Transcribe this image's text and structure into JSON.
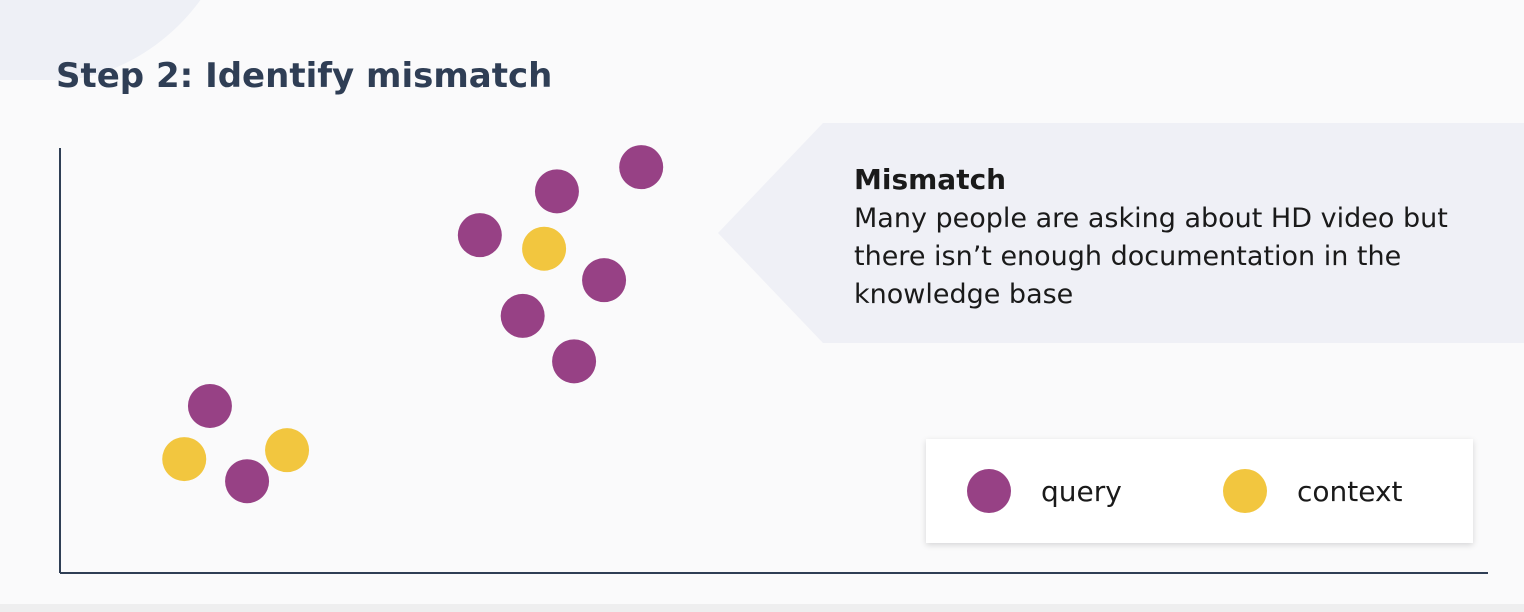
{
  "title": "Step 2: Identify mismatch",
  "colors": {
    "query": "#974185",
    "context": "#f2c63f",
    "axis": "#2f3e55"
  },
  "callout": {
    "title": "Mismatch",
    "body": "Many people are asking about HD video but there isn’t enough documentation in the knowledge base"
  },
  "legend": {
    "items": [
      {
        "label": "query",
        "color": "#974185"
      },
      {
        "label": "context",
        "color": "#f2c63f"
      }
    ]
  },
  "chart_data": {
    "type": "scatter",
    "title": "",
    "xlabel": "",
    "ylabel": "",
    "xlim": [
      0,
      100
    ],
    "ylim": [
      0,
      100
    ],
    "grid": false,
    "legend": "bottom-right",
    "series": [
      {
        "name": "query",
        "color": "#974185",
        "points": [
          [
            10.5,
            39.3
          ],
          [
            13.1,
            21.6
          ],
          [
            29.4,
            79.5
          ],
          [
            34.8,
            89.8
          ],
          [
            40.7,
            95.5
          ],
          [
            38.1,
            68.9
          ],
          [
            32.4,
            60.5
          ],
          [
            36.0,
            49.8
          ]
        ]
      },
      {
        "name": "context",
        "color": "#f2c63f",
        "points": [
          [
            8.7,
            26.8
          ],
          [
            15.9,
            28.9
          ],
          [
            33.9,
            76.3
          ]
        ]
      }
    ]
  }
}
